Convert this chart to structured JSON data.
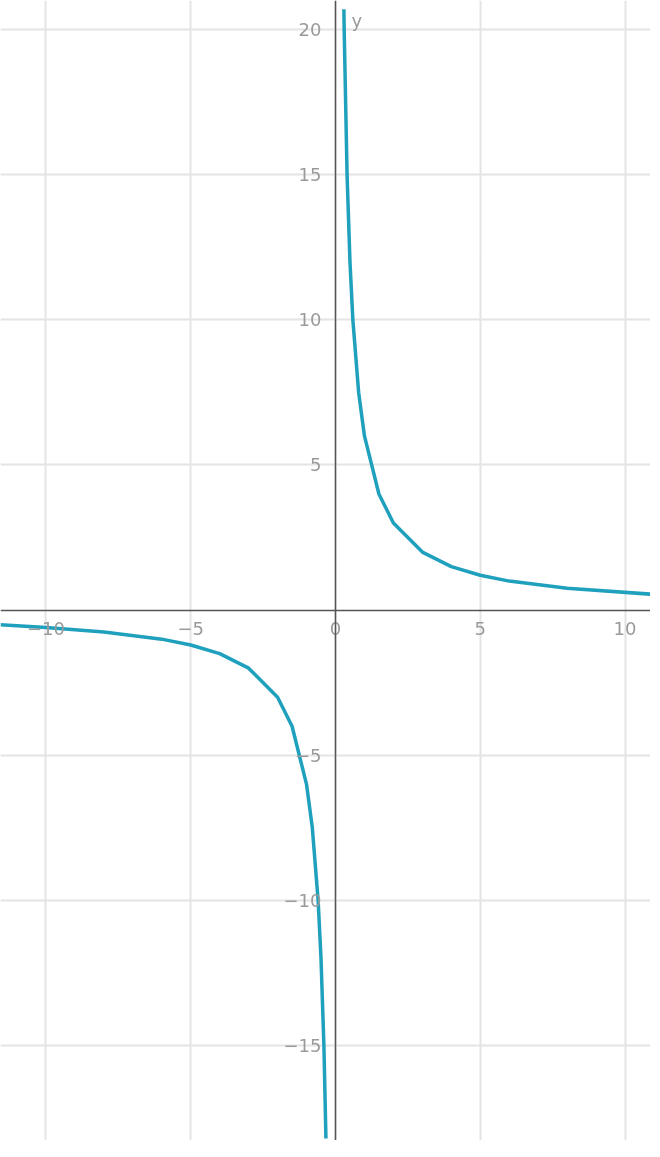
{
  "chart_data": {
    "type": "line",
    "ylabel": "y",
    "x": [
      -11.57,
      -10,
      -8,
      -6,
      -5,
      -4,
      -3,
      -2,
      -1.5,
      -1,
      -0.8,
      -0.6,
      -0.5,
      -0.4,
      -0.33,
      null,
      0.29,
      0.3,
      0.4,
      0.5,
      0.6,
      0.8,
      1,
      1.5,
      2,
      3,
      4,
      5,
      6,
      8,
      10.88
    ],
    "series": [
      {
        "color": "#1fa0bd",
        "values": [
          -0.5,
          -0.6,
          -0.75,
          -1,
          -1.2,
          -1.5,
          -2,
          -3,
          -4,
          -6,
          -7.5,
          -10,
          -12,
          -15,
          -18.2,
          null,
          20.7,
          20,
          15,
          12,
          10,
          7.5,
          6,
          4,
          3,
          2,
          1.5,
          1.2,
          1,
          0.75,
          0.55
        ]
      }
    ],
    "xlim": [
      -11.57,
      10.88
    ],
    "ylim": [
      -18.27,
      21.0
    ],
    "xticks": [
      -10,
      -5,
      0,
      5,
      10
    ],
    "yticks": [
      -15,
      -10,
      -5,
      5,
      10,
      15,
      20
    ],
    "grid": true,
    "marker": "none",
    "line_style": "solid"
  }
}
